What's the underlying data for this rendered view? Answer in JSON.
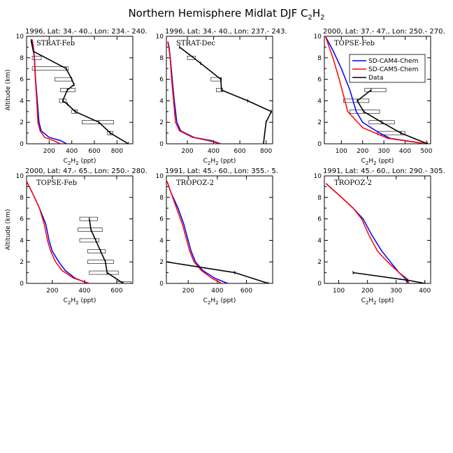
{
  "figure": {
    "title_main": "Northern Hemisphere Midlat DJF C",
    "title_species_sub": "2",
    "title_species_tail": "H",
    "title_species_sub2": "2"
  },
  "legend": {
    "entries": [
      {
        "label": "SD-CAM4-Chem",
        "color": "#0000ff"
      },
      {
        "label": "SD-CAM5-Chem",
        "color": "#ff0000"
      },
      {
        "label": "Data",
        "color": "#000000"
      }
    ]
  },
  "axis_text": {
    "xlabel_a": "C",
    "xlabel_sub1": "2",
    "xlabel_b": "H",
    "xlabel_sub2": "2",
    "xlabel_c": " (ppt)",
    "ylabel": "Altitude (km)"
  },
  "chart_data": [
    {
      "type": "line",
      "header": "1996, Lat: 34.- 40., Lon: 234.- 240.",
      "campaign": "STRAT-Feb",
      "xlim": [
        0,
        940
      ],
      "ylim": [
        0,
        10
      ],
      "xticks": [
        200,
        400,
        600,
        800
      ],
      "yticks": [
        0,
        2,
        4,
        6,
        8,
        10
      ],
      "show_ylabel": true,
      "series": [
        {
          "name": "SD-CAM4-Chem",
          "color": "#0000ff",
          "x": [
            355,
            300,
            200,
            130,
            110,
            95,
            80,
            70,
            60,
            50
          ],
          "y": [
            0,
            0.3,
            0.6,
            1.2,
            2,
            4,
            6,
            8,
            9,
            9.7
          ]
        },
        {
          "name": "SD-CAM5-Chem",
          "color": "#ff0000",
          "x": [
            300,
            240,
            160,
            120,
            100,
            90,
            78,
            68,
            58,
            48
          ],
          "y": [
            0,
            0.3,
            0.6,
            1.2,
            2,
            4,
            6,
            8,
            9,
            9.7
          ]
        },
        {
          "name": "Data",
          "color": "#000000",
          "x": [
            900,
            740,
            640,
            430,
            360,
            320,
            360,
            420,
            400,
            350,
            60,
            40
          ],
          "y": [
            0,
            1,
            2,
            3,
            3.7,
            4,
            5,
            5.5,
            6,
            7,
            8.6,
            9.6
          ]
        }
      ],
      "errorbars": [
        {
          "y": 1,
          "x0": 715,
          "x1": 765
        },
        {
          "y": 2,
          "x0": 490,
          "x1": 770
        },
        {
          "y": 3,
          "x0": 400,
          "x1": 450
        },
        {
          "y": 4,
          "x0": 290,
          "x1": 350
        },
        {
          "y": 5,
          "x0": 300,
          "x1": 430
        },
        {
          "y": 6,
          "x0": 250,
          "x1": 400
        },
        {
          "y": 7,
          "x0": 50,
          "x1": 370
        },
        {
          "y": 8,
          "x0": 50,
          "x1": 130
        }
      ]
    },
    {
      "type": "line",
      "header": "1996, Lat: 34.- 40., Lon: 237.- 243.",
      "campaign": "STRAT-Dec",
      "xlim": [
        40,
        850
      ],
      "ylim": [
        0,
        10
      ],
      "xticks": [
        200,
        400,
        600,
        800
      ],
      "yticks": [
        0,
        2,
        4,
        6,
        8,
        10
      ],
      "show_ylabel": false,
      "series": [
        {
          "name": "SD-CAM4-Chem",
          "color": "#0000ff",
          "x": [
            455,
            380,
            250,
            150,
            120,
            100,
            85,
            70,
            60,
            52
          ],
          "y": [
            0,
            0.3,
            0.6,
            1.2,
            2,
            4,
            6,
            8,
            9,
            9.5
          ]
        },
        {
          "name": "SD-CAM5-Chem",
          "color": "#ff0000",
          "x": [
            450,
            360,
            240,
            140,
            110,
            95,
            80,
            68,
            58,
            50
          ],
          "y": [
            0,
            0.3,
            0.6,
            1.2,
            2,
            4,
            6,
            8,
            9,
            9.5
          ]
        },
        {
          "name": "Data",
          "color": "#000000",
          "x": [
            780,
            790,
            800,
            840,
            660,
            460,
            455,
            300,
            140
          ],
          "y": [
            0,
            1,
            2,
            3,
            4,
            5,
            6,
            7.5,
            9
          ]
        }
      ],
      "errorbars": [
        {
          "y": 5,
          "x0": 420,
          "x1": 470
        },
        {
          "y": 6,
          "x0": 380,
          "x1": 460
        },
        {
          "y": 8,
          "x0": 200,
          "x1": 260
        }
      ]
    },
    {
      "type": "line",
      "header": "2000, Lat: 37.- 47., Lon: 250.- 270.",
      "campaign": "TOPSE-Feb",
      "xlim": [
        20,
        520
      ],
      "ylim": [
        0,
        10
      ],
      "xticks": [
        100,
        200,
        300,
        400,
        500
      ],
      "yticks": [
        0,
        2,
        4,
        6,
        8,
        10
      ],
      "show_ylabel": false,
      "series": [
        {
          "name": "SD-CAM4-Chem",
          "color": "#0000ff",
          "x": [
            500,
            330,
            280,
            200,
            170,
            140,
            100,
            60,
            25
          ],
          "y": [
            0,
            0.5,
            1,
            2,
            3,
            5,
            7,
            8.7,
            10
          ]
        },
        {
          "name": "SD-CAM5-Chem",
          "color": "#ff0000",
          "x": [
            500,
            320,
            200,
            130,
            110,
            90,
            60,
            25
          ],
          "y": [
            0,
            0.5,
            1.5,
            3,
            4.5,
            6,
            8,
            10
          ]
        },
        {
          "name": "Data",
          "color": "#000000",
          "x": [
            505,
            380,
            290,
            205,
            175,
            240
          ],
          "y": [
            0,
            1,
            2,
            3,
            4,
            5
          ]
        }
      ],
      "errorbars": [
        {
          "y": 1,
          "x0": 270,
          "x1": 400
        },
        {
          "y": 2,
          "x0": 230,
          "x1": 350
        },
        {
          "y": 3,
          "x0": 140,
          "x1": 280
        },
        {
          "y": 4,
          "x0": 110,
          "x1": 230
        },
        {
          "y": 5,
          "x0": 210,
          "x1": 310
        }
      ]
    },
    {
      "type": "line",
      "header": "2000, Lat: 47.- 65., Lon: 250.- 280.",
      "campaign": "TOPSE-Feb",
      "xlim": [
        40,
        700
      ],
      "ylim": [
        0,
        10
      ],
      "xticks": [
        200,
        400,
        600
      ],
      "yticks": [
        0,
        2,
        4,
        6,
        8,
        10
      ],
      "show_ylabel": true,
      "series": [
        {
          "name": "SD-CAM4-Chem",
          "color": "#0000ff",
          "x": [
            420,
            340,
            280,
            240,
            200,
            180,
            160,
            120,
            80,
            40
          ],
          "y": [
            0,
            0.5,
            1.2,
            2,
            3,
            4,
            5.5,
            7,
            8.3,
            9.5
          ]
        },
        {
          "name": "SD-CAM5-Chem",
          "color": "#ff0000",
          "x": [
            430,
            330,
            260,
            220,
            190,
            170,
            150,
            120,
            80,
            40
          ],
          "y": [
            0,
            0.5,
            1.2,
            2,
            3,
            4,
            5.5,
            7,
            8.3,
            9.5
          ]
        },
        {
          "name": "Data",
          "color": "#000000",
          "x": [
            640,
            540,
            530,
            500,
            470,
            440,
            430
          ],
          "y": [
            0,
            1,
            2,
            3,
            4,
            5,
            6
          ]
        }
      ],
      "errorbars": [
        {
          "y": 0,
          "x0": 600,
          "x1": 690
        },
        {
          "y": 1,
          "x0": 430,
          "x1": 610
        },
        {
          "y": 2,
          "x0": 420,
          "x1": 580
        },
        {
          "y": 3,
          "x0": 420,
          "x1": 530
        },
        {
          "y": 4,
          "x0": 370,
          "x1": 490
        },
        {
          "y": 5,
          "x0": 360,
          "x1": 510
        },
        {
          "y": 6,
          "x0": 370,
          "x1": 480
        }
      ]
    },
    {
      "type": "line",
      "header": "1991, Lat: 45.- 60., Lon: 355.- 5.",
      "campaign": "TROPOZ-2",
      "xlim": [
        50,
        780
      ],
      "ylim": [
        0,
        10
      ],
      "xticks": [
        200,
        400,
        600
      ],
      "yticks": [
        0,
        2,
        4,
        6,
        8,
        10
      ],
      "show_ylabel": false,
      "series": [
        {
          "name": "SD-CAM4-Chem",
          "color": "#0000ff",
          "x": [
            470,
            380,
            300,
            250,
            220,
            200,
            170,
            130,
            80,
            55
          ],
          "y": [
            0,
            0.5,
            1.2,
            2,
            3,
            4,
            5.5,
            7,
            8.5,
            9.5
          ]
        },
        {
          "name": "SD-CAM5-Chem",
          "color": "#ff0000",
          "x": [
            430,
            360,
            290,
            240,
            210,
            190,
            160,
            120,
            80,
            55
          ],
          "y": [
            0,
            0.5,
            1.2,
            2,
            3,
            4,
            5.5,
            7,
            8.5,
            9.5
          ]
        },
        {
          "name": "Data",
          "color": "#000000",
          "x": [
            750,
            520,
            50
          ],
          "y": [
            0,
            1,
            2
          ]
        }
      ],
      "errorbars": []
    },
    {
      "type": "line",
      "header": "1991, Lat: 45.- 60., Lon: 290.- 305.",
      "campaign": "TROPOZ-2",
      "xlim": [
        50,
        420
      ],
      "ylim": [
        0,
        10
      ],
      "xticks": [
        100,
        200,
        300,
        400
      ],
      "yticks": [
        0,
        2,
        4,
        6,
        8,
        10
      ],
      "show_ylabel": false,
      "series": [
        {
          "name": "SD-CAM4-Chem",
          "color": "#0000ff",
          "x": [
            340,
            330,
            310,
            280,
            250,
            215,
            185,
            150,
            110,
            55
          ],
          "y": [
            0,
            0.5,
            1,
            2,
            3,
            4.5,
            6,
            7,
            8,
            9.3
          ]
        },
        {
          "name": "SD-CAM5-Chem",
          "color": "#ff0000",
          "x": [
            345,
            335,
            310,
            270,
            235,
            205,
            180,
            150,
            110,
            55
          ],
          "y": [
            0,
            0.5,
            1,
            2,
            3,
            4.5,
            6,
            7,
            8,
            9.3
          ]
        },
        {
          "name": "Data",
          "color": "#000000",
          "x": [
            400,
            340,
            150
          ],
          "y": [
            0,
            0.3,
            1
          ]
        }
      ],
      "errorbars": []
    }
  ]
}
